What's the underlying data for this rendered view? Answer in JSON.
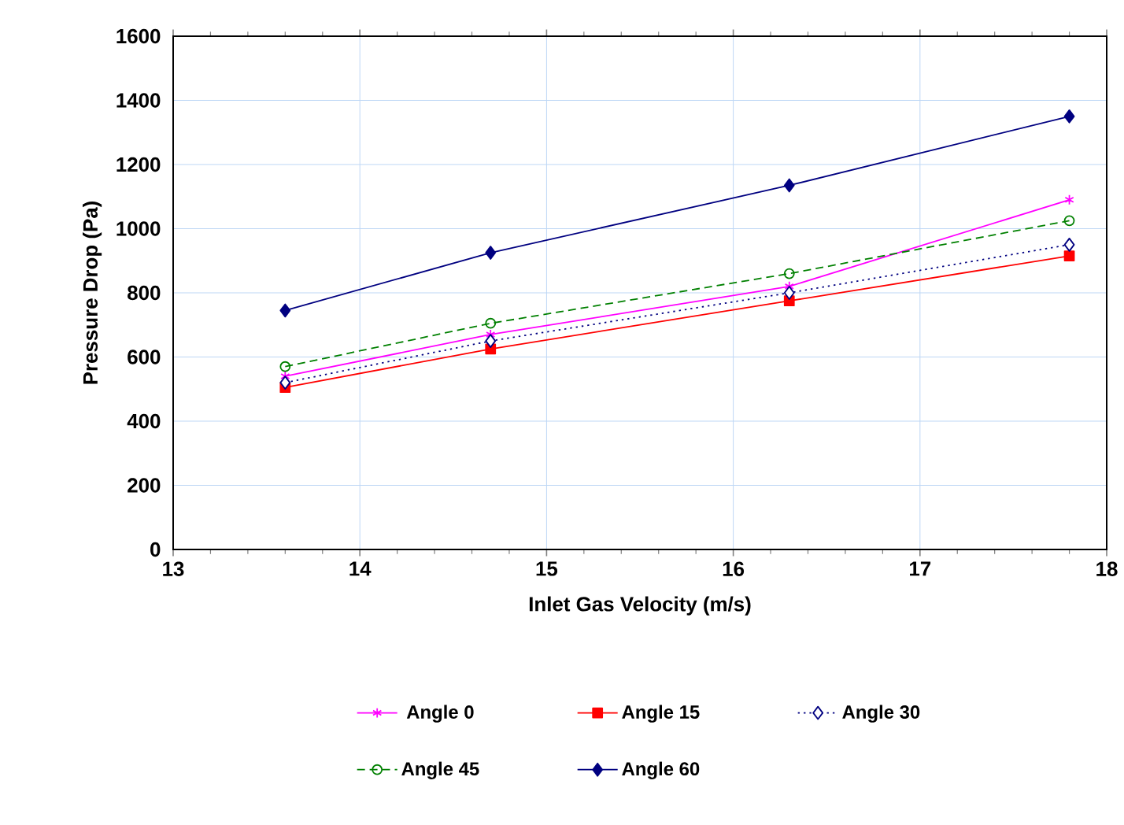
{
  "chart_data": {
    "type": "line",
    "xlabel": "Inlet Gas Velocity (m/s)",
    "ylabel": "Pressure Drop (Pa)",
    "xlim": [
      13,
      18
    ],
    "xticks": [
      13,
      14,
      15,
      16,
      17,
      18
    ],
    "ylim": [
      0,
      1600
    ],
    "yticks": [
      0,
      200,
      400,
      600,
      800,
      1000,
      1200,
      1400,
      1600
    ],
    "grid": true,
    "legend": "bottom",
    "series": [
      {
        "name": "Angle 0",
        "color": "#ff00ff",
        "marker": "cross",
        "line_style": "solid",
        "x": [
          13.6,
          14.7,
          16.3,
          17.8
        ],
        "values": [
          540,
          670,
          820,
          1090
        ]
      },
      {
        "name": "Angle 15",
        "color": "#ff0000",
        "marker": "square",
        "line_style": "solid",
        "x": [
          13.6,
          14.7,
          16.3,
          17.8
        ],
        "values": [
          505,
          625,
          775,
          915
        ]
      },
      {
        "name": "Angle 30",
        "color": "#000080",
        "marker": "diamond",
        "line_style": "dotted",
        "x": [
          13.6,
          14.7,
          16.3,
          17.8
        ],
        "values": [
          520,
          650,
          800,
          950
        ]
      },
      {
        "name": "Angle 45",
        "color": "#008000",
        "marker": "circle",
        "line_style": "dashed",
        "x": [
          13.6,
          14.7,
          16.3,
          17.8
        ],
        "values": [
          570,
          705,
          860,
          1025
        ]
      },
      {
        "name": "Angle 60",
        "color": "#000080",
        "marker": "diamond",
        "line_style": "solid",
        "x": [
          13.6,
          14.7,
          16.3,
          17.8
        ],
        "values": [
          745,
          925,
          1135,
          1350
        ]
      }
    ]
  }
}
